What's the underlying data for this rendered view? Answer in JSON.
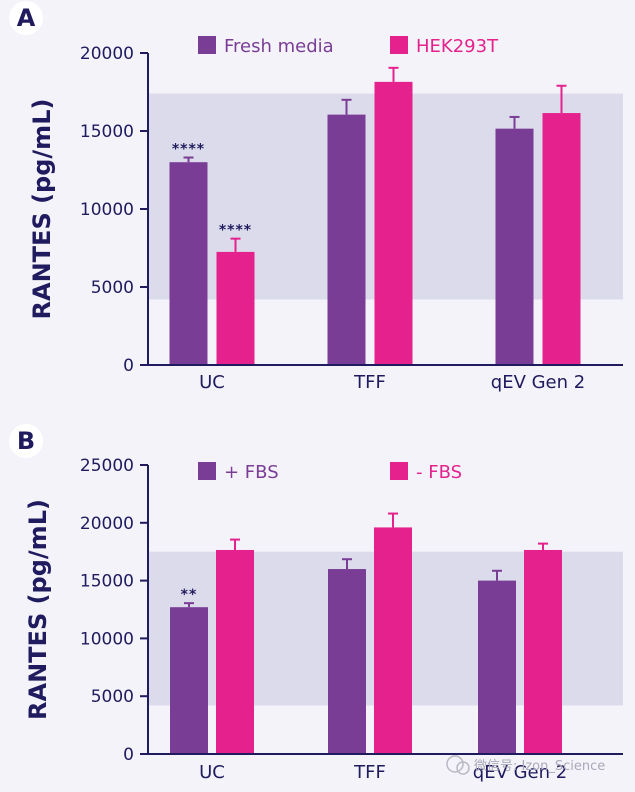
{
  "colors": {
    "background": "#f4f3fa",
    "band": "#dcdbeb",
    "axis": "#1f1b5e",
    "text": "#1f1b5e",
    "series_purple": "#7a3d96",
    "series_pink": "#e4218c"
  },
  "watermark": {
    "text": "微信号: Izon_Science"
  },
  "chart_data": [
    {
      "panel_label": "A",
      "type": "bar",
      "ylabel": "RANTES (pg/mL)",
      "ylim": [
        0,
        20000
      ],
      "yticks": [
        0,
        5000,
        10000,
        15000,
        20000
      ],
      "ytick_labels": [
        "0",
        "5000",
        "10000",
        "15000",
        "20000"
      ],
      "categories": [
        "UC",
        "TFF",
        "qEV Gen 2"
      ],
      "reference_band": [
        4200,
        17400
      ],
      "legend_position": "top",
      "series": [
        {
          "name": "Fresh media",
          "color": "#7a3d96",
          "values": [
            13000,
            16050,
            15150
          ],
          "errors": [
            300,
            950,
            750
          ],
          "significance": [
            "****",
            "",
            ""
          ]
        },
        {
          "name": "HEK293T",
          "color": "#e4218c",
          "values": [
            7250,
            18150,
            16150
          ],
          "errors": [
            850,
            900,
            1750
          ],
          "significance": [
            "****",
            "",
            ""
          ]
        }
      ]
    },
    {
      "panel_label": "B",
      "type": "bar",
      "ylabel": "RANTES (pg/mL)",
      "ylim": [
        0,
        25000
      ],
      "yticks": [
        0,
        5000,
        10000,
        15000,
        20000,
        25000
      ],
      "ytick_labels": [
        "0",
        "5000",
        "10000",
        "15000",
        "20000",
        "25000"
      ],
      "categories": [
        "UC",
        "TFF",
        "qEV Gen 2"
      ],
      "reference_band": [
        4200,
        17500
      ],
      "legend_position": "top",
      "series": [
        {
          "name": "+ FBS",
          "color": "#7a3d96",
          "values": [
            12700,
            16000,
            15000
          ],
          "errors": [
            350,
            850,
            850
          ],
          "significance": [
            "**",
            "",
            ""
          ]
        },
        {
          "name": "- FBS",
          "color": "#e4218c",
          "values": [
            17650,
            19600,
            17650
          ],
          "errors": [
            900,
            1200,
            550
          ],
          "significance": [
            "",
            "",
            ""
          ]
        }
      ]
    }
  ]
}
